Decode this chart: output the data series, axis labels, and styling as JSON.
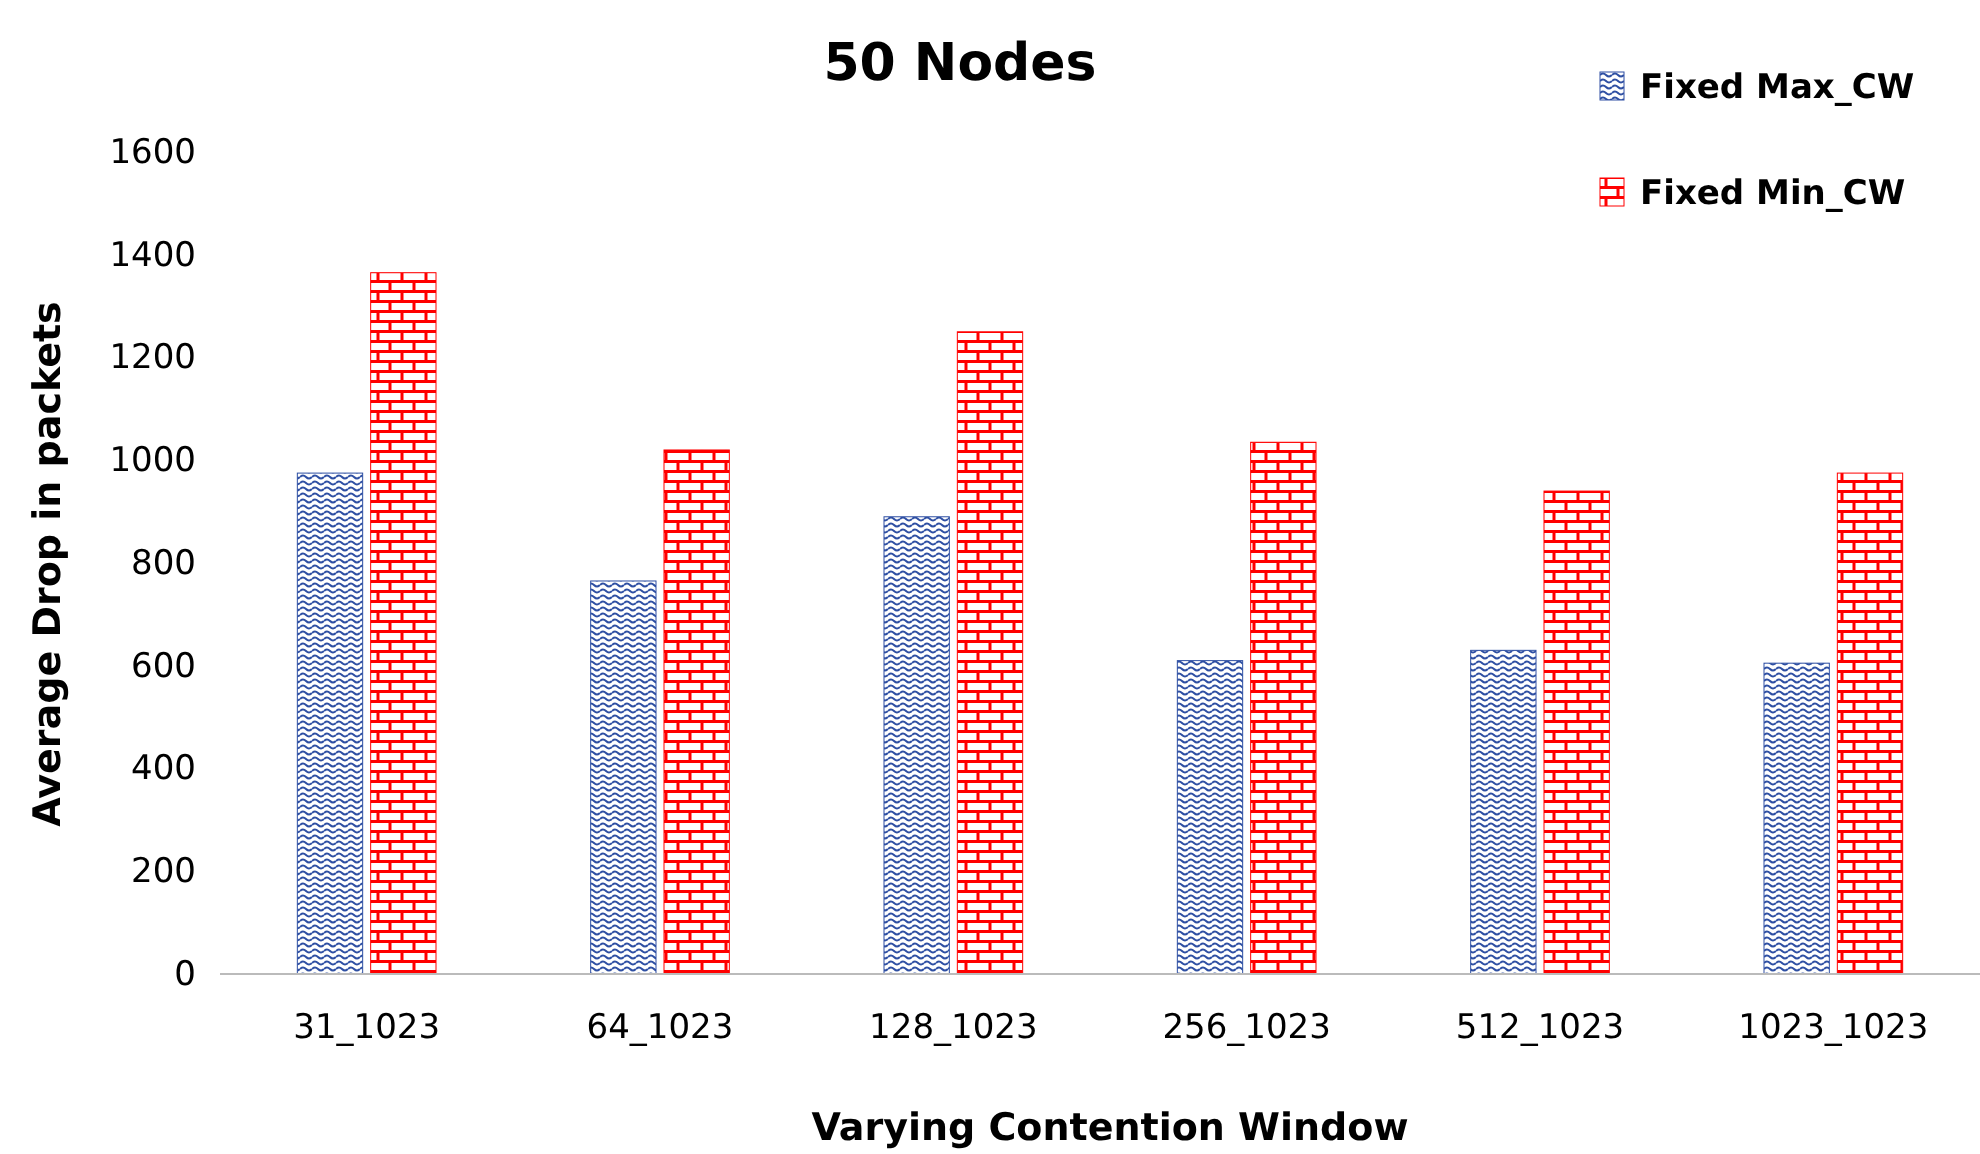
{
  "chart_data": {
    "type": "bar",
    "title": "50 Nodes",
    "xlabel": "Varying Contention Window",
    "ylabel": "Average Drop in packets",
    "categories": [
      "31_1023",
      "64_1023",
      "128_1023",
      "256_1023",
      "512_1023",
      "1023_1023"
    ],
    "series": [
      {
        "name": "Fixed Max_CW",
        "color": "#2e4fa3",
        "values": [
          975,
          765,
          890,
          610,
          630,
          605
        ]
      },
      {
        "name": "Fixed Min_CW",
        "color": "#ff0000",
        "values": [
          1365,
          1020,
          1250,
          1035,
          940,
          975
        ]
      }
    ],
    "ylim": [
      0,
      1600
    ],
    "yticks": [
      0,
      200,
      400,
      600,
      800,
      1000,
      1200,
      1400,
      1600
    ],
    "grid": false,
    "legend": "top right"
  }
}
